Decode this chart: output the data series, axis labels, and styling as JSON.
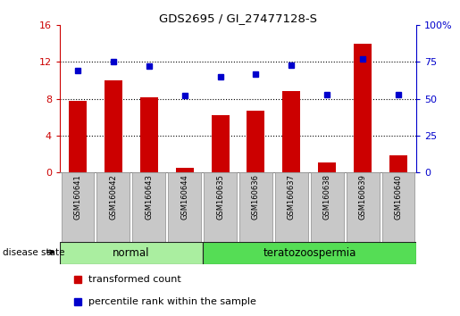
{
  "title": "GDS2695 / GI_27477128-S",
  "samples": [
    "GSM160641",
    "GSM160642",
    "GSM160643",
    "GSM160644",
    "GSM160635",
    "GSM160636",
    "GSM160637",
    "GSM160638",
    "GSM160639",
    "GSM160640"
  ],
  "transformed_count": [
    7.8,
    10.0,
    8.2,
    0.5,
    6.2,
    6.7,
    8.8,
    1.1,
    14.0,
    1.8
  ],
  "percentile_rank": [
    69,
    75,
    72,
    52,
    65,
    67,
    73,
    53,
    77,
    53
  ],
  "disease_groups": [
    {
      "label": "normal",
      "start": 0,
      "end": 4
    },
    {
      "label": "teratozoospermia",
      "start": 4,
      "end": 10
    }
  ],
  "left_ylim": [
    0,
    16
  ],
  "left_yticks": [
    0,
    4,
    8,
    12,
    16
  ],
  "right_ylim": [
    0,
    100
  ],
  "right_yticks": [
    0,
    25,
    50,
    75,
    100
  ],
  "right_yticklabels": [
    "0",
    "25",
    "50",
    "75",
    "100%"
  ],
  "bar_color": "#cc0000",
  "dot_color": "#0000cc",
  "grid_color": "#000000",
  "bg_plot": "#ffffff",
  "bg_xtick": "#c8c8c8",
  "bg_group_normal": "#aaeea0",
  "bg_group_terato": "#55dd55",
  "disease_state_label": "disease state",
  "legend_bar_label": "transformed count",
  "legend_dot_label": "percentile rank within the sample",
  "bar_width": 0.5
}
